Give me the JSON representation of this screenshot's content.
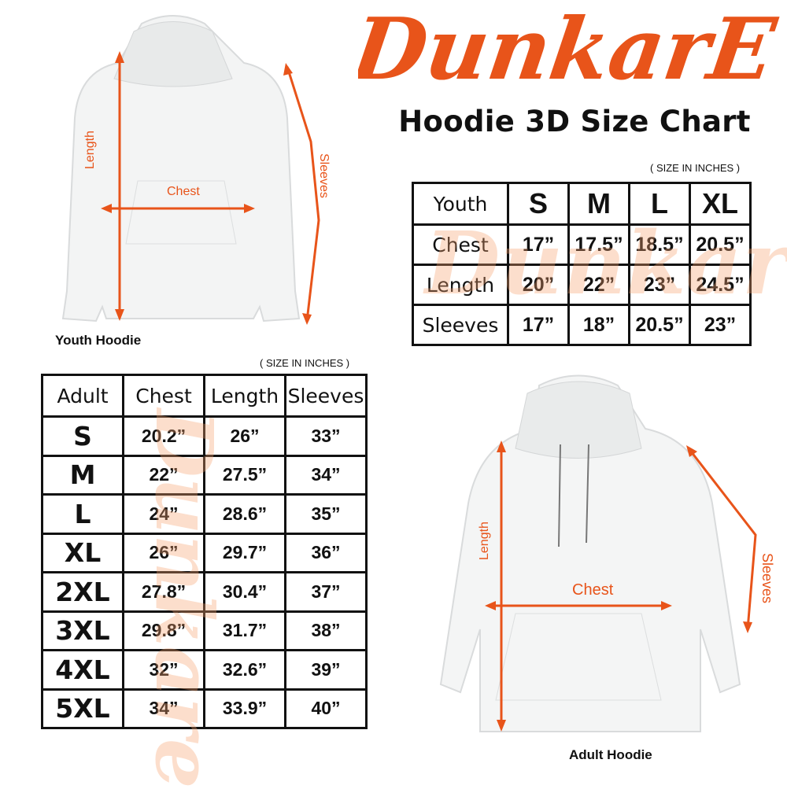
{
  "brand": {
    "logo_text": "DunkarE",
    "color": "#E8541A"
  },
  "title": "Hoodie 3D Size Chart",
  "youth": {
    "unit_note": "( SIZE IN INCHES )",
    "image_caption": "Youth Hoodie",
    "dimension_labels": {
      "length": "Length",
      "chest": "Chest",
      "sleeves": "Sleeves"
    },
    "header": [
      "Youth",
      "S",
      "M",
      "L",
      "XL"
    ],
    "rows": [
      [
        "Chest",
        "17”",
        "17.5”",
        "18.5”",
        "20.5”"
      ],
      [
        "Length",
        "20”",
        "22”",
        "23”",
        "24.5”"
      ],
      [
        "Sleeves",
        "17”",
        "18”",
        "20.5”",
        "23”"
      ]
    ]
  },
  "adult": {
    "unit_note": "( SIZE IN INCHES )",
    "image_caption": "Adult Hoodie",
    "dimension_labels": {
      "length": "Length",
      "chest": "Chest",
      "sleeves": "Sleeves"
    },
    "header": [
      "Adult",
      "Chest",
      "Length",
      "Sleeves"
    ],
    "rows": [
      [
        "S",
        "20.2”",
        "26”",
        "33”"
      ],
      [
        "M",
        "22”",
        "27.5”",
        "34”"
      ],
      [
        "L",
        "24”",
        "28.6”",
        "35”"
      ],
      [
        "XL",
        "26”",
        "29.7”",
        "36”"
      ],
      [
        "2XL",
        "27.8”",
        "30.4”",
        "37”"
      ],
      [
        "3XL",
        "29.8”",
        "31.7”",
        "38”"
      ],
      [
        "4XL",
        "32”",
        "32.6”",
        "39”"
      ],
      [
        "5XL",
        "34”",
        "33.9”",
        "40”"
      ]
    ]
  }
}
